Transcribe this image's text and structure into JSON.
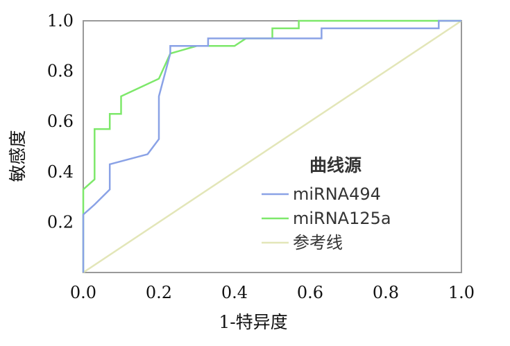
{
  "chart_data": {
    "type": "line",
    "xlabel": "1-特异度",
    "ylabel": "敏感度",
    "xlim": [
      0,
      1
    ],
    "ylim": [
      0,
      1
    ],
    "x_ticks": [
      "0.0",
      "0.2",
      "0.4",
      "0.6",
      "0.8",
      "1.0"
    ],
    "y_ticks": [
      "0.2",
      "0.4",
      "0.6",
      "0.8",
      "1.0"
    ],
    "grid": false,
    "legend": {
      "title": "曲线源",
      "placement": "bottom-right"
    },
    "series": [
      {
        "name": "miRNA494",
        "color": "#8aa2e6",
        "x": [
          0,
          0,
          0.03,
          0.07,
          0.07,
          0.17,
          0.2,
          0.2,
          0.23,
          0.23,
          0.33,
          0.33,
          0.43,
          0.5,
          0.63,
          0.63,
          0.94,
          0.94,
          1
        ],
        "y": [
          0,
          0.23,
          0.27,
          0.33,
          0.43,
          0.47,
          0.53,
          0.7,
          0.87,
          0.9,
          0.9,
          0.93,
          0.93,
          0.93,
          0.93,
          0.97,
          0.97,
          1,
          1
        ]
      },
      {
        "name": "miRNA125a",
        "color": "#7de86a",
        "x": [
          0,
          0,
          0.03,
          0.03,
          0.07,
          0.07,
          0.1,
          0.1,
          0.2,
          0.23,
          0.3,
          0.4,
          0.43,
          0.5,
          0.5,
          0.57,
          0.57,
          1
        ],
        "y": [
          0,
          0.33,
          0.37,
          0.57,
          0.57,
          0.63,
          0.63,
          0.7,
          0.77,
          0.87,
          0.9,
          0.9,
          0.93,
          0.93,
          0.97,
          0.97,
          1,
          1
        ]
      },
      {
        "name": "参考线",
        "color": "#e3e6b8",
        "x": [
          0,
          1
        ],
        "y": [
          0,
          1
        ]
      }
    ]
  }
}
